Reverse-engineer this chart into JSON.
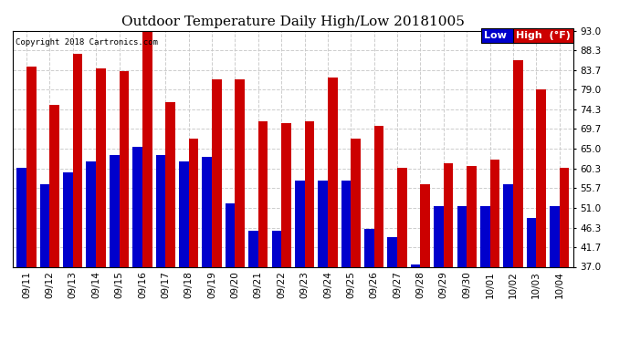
{
  "title": "Outdoor Temperature Daily High/Low 20181005",
  "copyright": "Copyright 2018 Cartronics.com",
  "dates": [
    "09/11",
    "09/12",
    "09/13",
    "09/14",
    "09/15",
    "09/16",
    "09/17",
    "09/18",
    "09/19",
    "09/20",
    "09/21",
    "09/22",
    "09/23",
    "09/24",
    "09/25",
    "09/26",
    "09/27",
    "09/28",
    "09/29",
    "09/30",
    "10/01",
    "10/02",
    "10/03",
    "10/04"
  ],
  "highs": [
    84.5,
    75.5,
    87.5,
    84.0,
    83.5,
    93.0,
    76.0,
    67.5,
    81.5,
    81.5,
    71.5,
    71.0,
    71.5,
    82.0,
    67.5,
    70.5,
    60.5,
    56.5,
    61.5,
    61.0,
    62.5,
    86.0,
    79.0,
    60.5
  ],
  "lows": [
    60.5,
    56.5,
    59.5,
    62.0,
    63.5,
    65.5,
    63.5,
    62.0,
    63.0,
    52.0,
    45.5,
    45.5,
    57.5,
    57.5,
    57.5,
    46.0,
    44.0,
    37.5,
    51.5,
    51.5,
    51.5,
    56.5,
    48.5,
    51.5
  ],
  "low_color": "#0000cc",
  "high_color": "#cc0000",
  "background_color": "#ffffff",
  "grid_color": "#c8c8c8",
  "ylim": [
    37.0,
    93.0
  ],
  "yticks": [
    37.0,
    41.7,
    46.3,
    51.0,
    55.7,
    60.3,
    65.0,
    69.7,
    74.3,
    79.0,
    83.7,
    88.3,
    93.0
  ],
  "bar_width": 0.42,
  "title_fontsize": 11,
  "tick_fontsize": 7.5,
  "legend_fontsize": 8
}
